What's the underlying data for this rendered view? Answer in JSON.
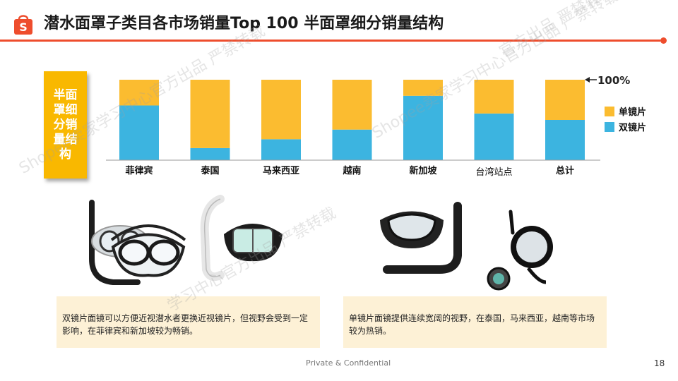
{
  "header": {
    "logo_glyph": "S",
    "title": "潜水面罩子类目各市场销量Top 100 半面罩细分销量结构"
  },
  "side_label": "半面罩细分销量结构",
  "chart_data": {
    "type": "bar",
    "stacked": true,
    "categories": [
      "菲律宾",
      "泰国",
      "马来西亚",
      "越南",
      "新加坡",
      "台湾站点",
      "总计"
    ],
    "series": [
      {
        "name": "双镜片",
        "color": "#3cb4e0",
        "values": [
          68,
          15,
          26,
          38,
          80,
          58,
          50
        ]
      },
      {
        "name": "单镜片",
        "color": "#fbbc30",
        "values": [
          32,
          85,
          74,
          62,
          20,
          42,
          50
        ]
      }
    ],
    "legend_order": [
      "单镜片",
      "双镜片"
    ],
    "legend_position": "right",
    "ylim": [
      0,
      100
    ],
    "annotation": "100%",
    "grid": false
  },
  "captions": {
    "left": "双镜片面镜可以方便近视潜水者更换近视镜片，但视野会受到一定影响，在菲律宾和新加坡较为畅销。",
    "right": "单镜片面镜提供连续宽阔的视野，在泰国，马来西亚，越南等市场较为热销。"
  },
  "watermarks": [
    "Shopee卖家学习中心官方出品 严禁转载",
    "官方出品 严禁转载",
    "Shopee卖家学习中心官方出品 严禁转载",
    "学习中心官方出品 严禁转载"
  ],
  "footer": {
    "confidential": "Private & Confidential",
    "page_number": "18"
  },
  "colors": {
    "accent": "#ee4d2d",
    "side_box": "#f9b800",
    "caption_bg": "#fdf1d6"
  }
}
